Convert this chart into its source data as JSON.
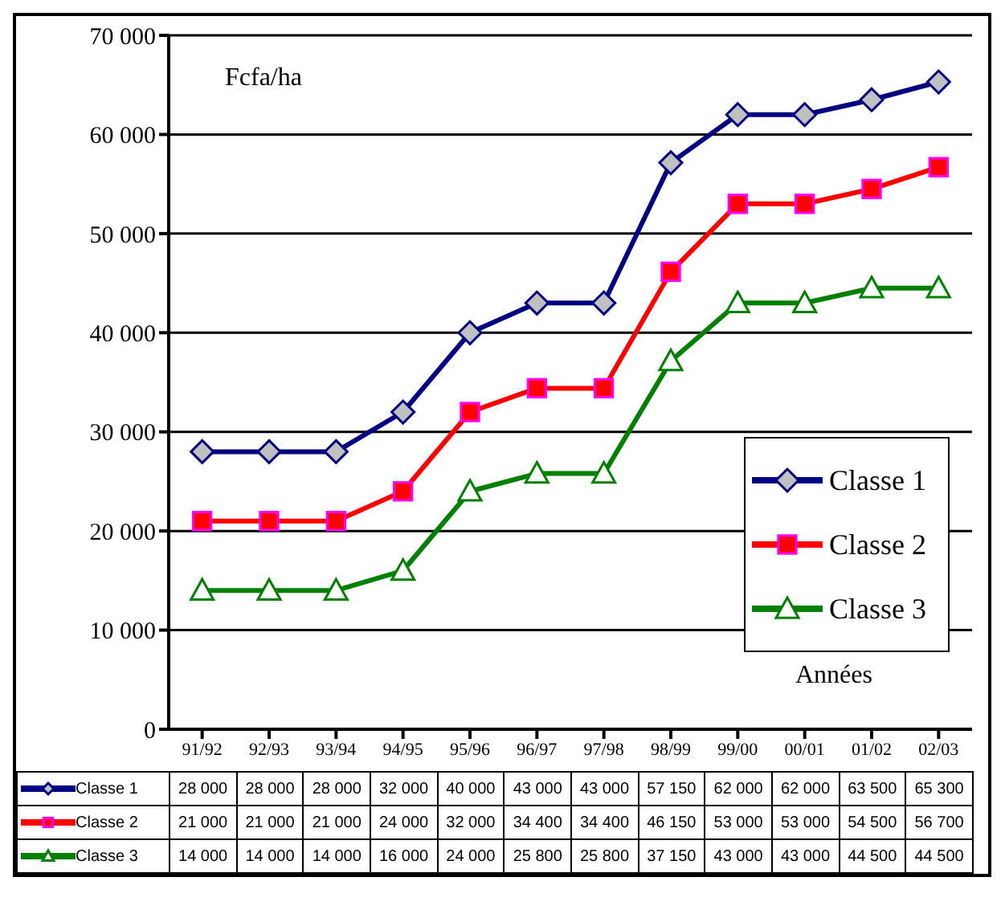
{
  "chart_data": {
    "type": "line",
    "ylabel": "Fcfa/ha",
    "xlabel": "Années",
    "categories": [
      "91/92",
      "92/93",
      "93/94",
      "94/95",
      "95/96",
      "96/97",
      "97/98",
      "98/99",
      "99/00",
      "00/01",
      "01/02",
      "02/03"
    ],
    "series": [
      {
        "name": "Classe 1",
        "color": "#000080",
        "marker": "diamond",
        "values": [
          28000,
          28000,
          28000,
          32000,
          40000,
          43000,
          43000,
          57150,
          62000,
          62000,
          63500,
          65300
        ],
        "value_labels": [
          "28 000",
          "28 000",
          "28 000",
          "32 000",
          "40 000",
          "43 000",
          "43 000",
          "57 150",
          "62 000",
          "62 000",
          "63 500",
          "65 300"
        ]
      },
      {
        "name": "Classe 2",
        "color": "#ff0000",
        "marker": "square",
        "values": [
          21000,
          21000,
          21000,
          24000,
          32000,
          34400,
          34400,
          46150,
          53000,
          53000,
          54500,
          56700
        ],
        "value_labels": [
          "21 000",
          "21 000",
          "21 000",
          "24 000",
          "32 000",
          "34 400",
          "34 400",
          "46 150",
          "53 000",
          "53 000",
          "54 500",
          "56 700"
        ]
      },
      {
        "name": "Classe 3",
        "color": "#008000",
        "marker": "triangle",
        "values": [
          14000,
          14000,
          14000,
          16000,
          24000,
          25800,
          25800,
          37150,
          43000,
          43000,
          44500,
          44500
        ],
        "value_labels": [
          "14 000",
          "14 000",
          "14 000",
          "16 000",
          "24 000",
          "25 800",
          "25 800",
          "37 150",
          "43 000",
          "43 000",
          "44 500",
          "44 500"
        ]
      }
    ],
    "ylim": [
      0,
      70000
    ],
    "yticks": [
      0,
      {
        "value": 10000,
        "label": "10 000"
      },
      {
        "value": 20000,
        "label": "20 000"
      },
      {
        "value": 30000,
        "label": "30 000"
      },
      {
        "value": 40000,
        "label": "40 000"
      },
      {
        "value": 50000,
        "label": "50 000"
      },
      {
        "value": 60000,
        "label": "60 000"
      },
      {
        "value": 70000,
        "label": "70 000"
      }
    ],
    "grid": "y",
    "legend": "right"
  }
}
